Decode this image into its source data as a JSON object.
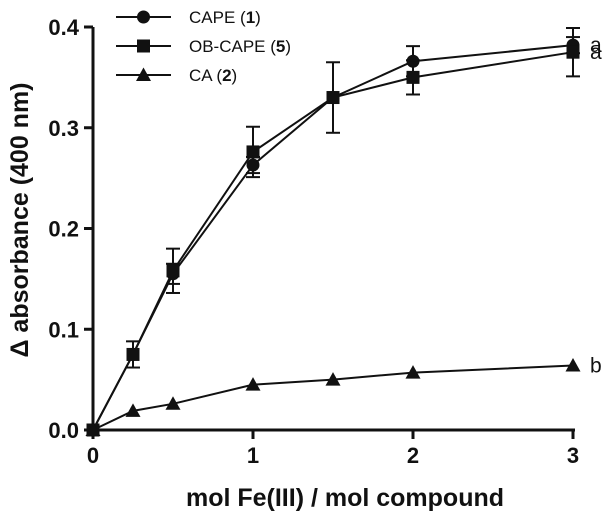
{
  "chart_data": {
    "type": "line",
    "xlabel": "mol Fe(III) / mol compound",
    "ylabel": "Δ absorbance (400 nm)",
    "xlim": [
      0,
      3
    ],
    "ylim": [
      0,
      0.4
    ],
    "xticks": [
      "0",
      "1",
      "2",
      "3"
    ],
    "yticks": [
      "0.0",
      "0.1",
      "0.2",
      "0.3",
      "0.4"
    ],
    "grid": false,
    "legend_position": "top-left",
    "series": [
      {
        "name": "CAPE",
        "name_number": "1",
        "marker": "circle",
        "x": [
          0,
          0.25,
          0.5,
          1,
          1.5,
          2,
          3
        ],
        "y": [
          0,
          0.075,
          0.155,
          0.263,
          0.33,
          0.366,
          0.382
        ],
        "err": [
          0,
          0,
          0.01,
          0.008,
          0,
          0.015,
          0.008
        ],
        "significance": "a"
      },
      {
        "name": "OB-CAPE",
        "name_number": "5",
        "marker": "square",
        "x": [
          0,
          0.25,
          0.5,
          1,
          1.5,
          2,
          3
        ],
        "y": [
          0,
          0.075,
          0.158,
          0.276,
          0.33,
          0.35,
          0.375
        ],
        "err": [
          0,
          0.013,
          0.022,
          0.025,
          0.035,
          0.017,
          0.024
        ],
        "significance": "a"
      },
      {
        "name": "CA",
        "name_number": "2",
        "marker": "triangle",
        "x": [
          0,
          0.25,
          0.5,
          1,
          1.5,
          2,
          3
        ],
        "y": [
          0,
          0.019,
          0.026,
          0.045,
          0.05,
          0.057,
          0.064
        ],
        "err": [
          0,
          0,
          0,
          0,
          0,
          0,
          0
        ],
        "significance": "b"
      }
    ]
  }
}
